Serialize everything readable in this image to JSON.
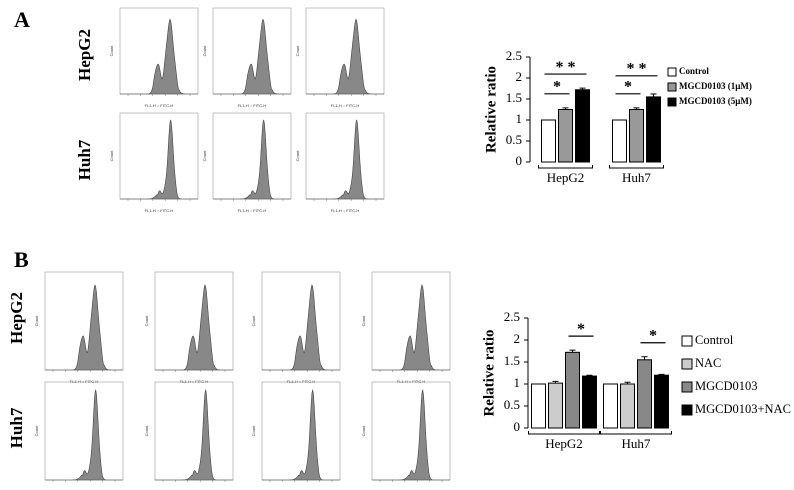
{
  "panels": [
    {
      "label": "A",
      "rows": [
        "HepG2",
        "Huh7"
      ]
    },
    {
      "label": "B",
      "rows": [
        "HepG2",
        "Huh7"
      ]
    }
  ],
  "histogram": {
    "x_label": "FL1-H :: FITC-H",
    "y_label": "Count"
  },
  "chart_data": [
    {
      "type": "bar",
      "y_label": "Relative ratio",
      "categories": [
        "HepG2",
        "Huh7"
      ],
      "ylim": [
        0,
        2.5
      ],
      "yticks": [
        0,
        0.5,
        1,
        1.5,
        2,
        2.5
      ],
      "series": [
        {
          "name": "Control",
          "color": "#ffffff",
          "values": [
            1,
            1
          ],
          "errors": [
            0,
            0
          ]
        },
        {
          "name": "MGCD0103 (1μM)",
          "color": "#999999",
          "values": [
            1.25,
            1.25
          ],
          "errors": [
            0.04,
            0.04
          ]
        },
        {
          "name": "MGCD0103 (5μM)",
          "color": "#000000",
          "values": [
            1.72,
            1.55
          ],
          "errors": [
            0.04,
            0.07
          ]
        }
      ],
      "annotations": [
        {
          "text": "*",
          "category": "HepG2",
          "from": "Control",
          "to": "MGCD0103 (1μM)"
        },
        {
          "text": "* *",
          "category": "HepG2",
          "from": "Control",
          "to": "MGCD0103 (5μM)"
        },
        {
          "text": "*",
          "category": "Huh7",
          "from": "Control",
          "to": "MGCD0103 (1μM)"
        },
        {
          "text": "* *",
          "category": "Huh7",
          "from": "Control",
          "to": "MGCD0103 (5μM)"
        }
      ]
    },
    {
      "type": "bar",
      "y_label": "Relative ratio",
      "categories": [
        "HepG2",
        "Huh7"
      ],
      "ylim": [
        0,
        2.5
      ],
      "yticks": [
        0,
        0.5,
        1,
        1.5,
        2,
        2.5
      ],
      "series": [
        {
          "name": "Control",
          "color": "#ffffff",
          "values": [
            1,
            1
          ],
          "errors": [
            0,
            0
          ]
        },
        {
          "name": "NAC",
          "color": "#cccccc",
          "values": [
            1.02,
            1.0
          ],
          "errors": [
            0.04,
            0.04
          ]
        },
        {
          "name": "MGCD0103",
          "color": "#888888",
          "values": [
            1.72,
            1.55
          ],
          "errors": [
            0.05,
            0.07
          ]
        },
        {
          "name": "MGCD0103+NAC",
          "color": "#000000",
          "values": [
            1.18,
            1.2
          ],
          "errors": [
            0.02,
            0.02
          ]
        }
      ],
      "annotations": [
        {
          "text": "*",
          "category": "HepG2",
          "from": "MGCD0103",
          "to": "MGCD0103+NAC"
        },
        {
          "text": "*",
          "category": "Huh7",
          "from": "MGCD0103",
          "to": "MGCD0103+NAC"
        }
      ]
    }
  ]
}
